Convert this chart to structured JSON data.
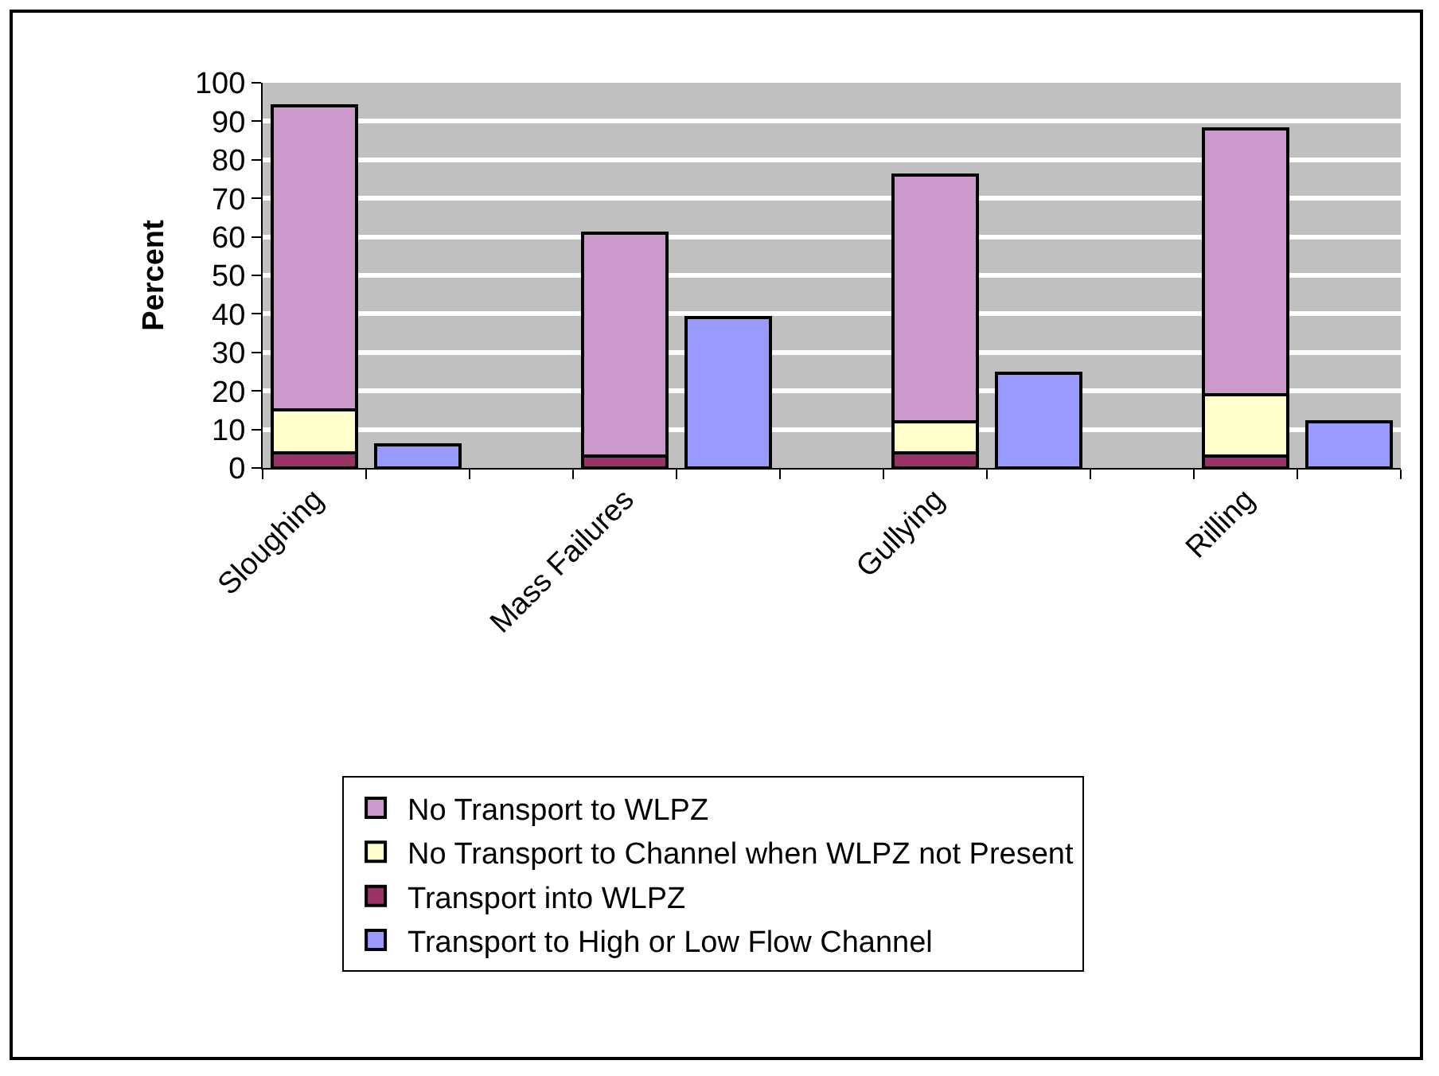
{
  "chart_data": {
    "type": "bar",
    "stacked": true,
    "ylabel": "Percent",
    "categories": [
      "Sloughing",
      null,
      null,
      "Mass Failures",
      null,
      null,
      "Gullying",
      null,
      null,
      "Rilling",
      null
    ],
    "series": [
      {
        "name": "Transport into WLPZ",
        "color": "#993366",
        "values": [
          4,
          null,
          null,
          3,
          null,
          null,
          4,
          null,
          null,
          3,
          null
        ]
      },
      {
        "name": "No Transport to Channel when WLPZ not Present",
        "color": "#ffffcc",
        "values": [
          11,
          null,
          null,
          0,
          null,
          null,
          8,
          null,
          null,
          16,
          null
        ]
      },
      {
        "name": "No Transport to WLPZ",
        "color": "#cc99cc",
        "values": [
          79,
          null,
          null,
          58,
          null,
          null,
          64,
          null,
          null,
          69,
          null
        ]
      },
      {
        "name": "Transport to High or Low Flow Channel",
        "color": "#9999ff",
        "values": [
          null,
          6,
          null,
          null,
          39,
          null,
          null,
          24.5,
          null,
          null,
          12
        ]
      }
    ],
    "ylim": [
      0,
      100
    ],
    "yticks": [
      0,
      10,
      20,
      30,
      40,
      50,
      60,
      70,
      80,
      90,
      100
    ],
    "grid": "y",
    "legend": "bottom"
  }
}
